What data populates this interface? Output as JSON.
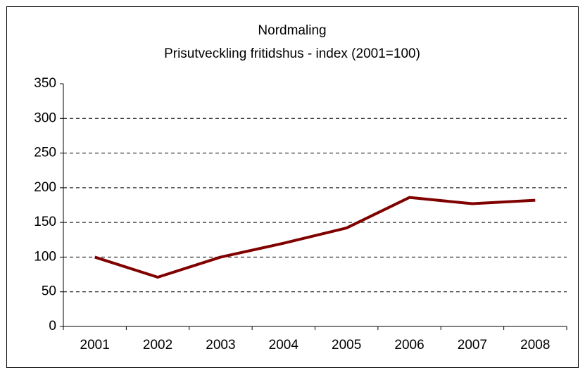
{
  "chart_data": {
    "type": "line",
    "title": "Nordmaling",
    "subtitle": "Prisutveckling fritidshus - index (2001=100)",
    "categories": [
      "2001",
      "2002",
      "2003",
      "2004",
      "2005",
      "2006",
      "2007",
      "2008"
    ],
    "series": [
      {
        "color": "#800000",
        "values": [
          100,
          71,
          100,
          120,
          142,
          186,
          177,
          182
        ]
      }
    ],
    "ylim": [
      0,
      350
    ],
    "yticks": [
      0,
      50,
      100,
      150,
      200,
      250,
      300,
      350
    ],
    "grid": true
  }
}
